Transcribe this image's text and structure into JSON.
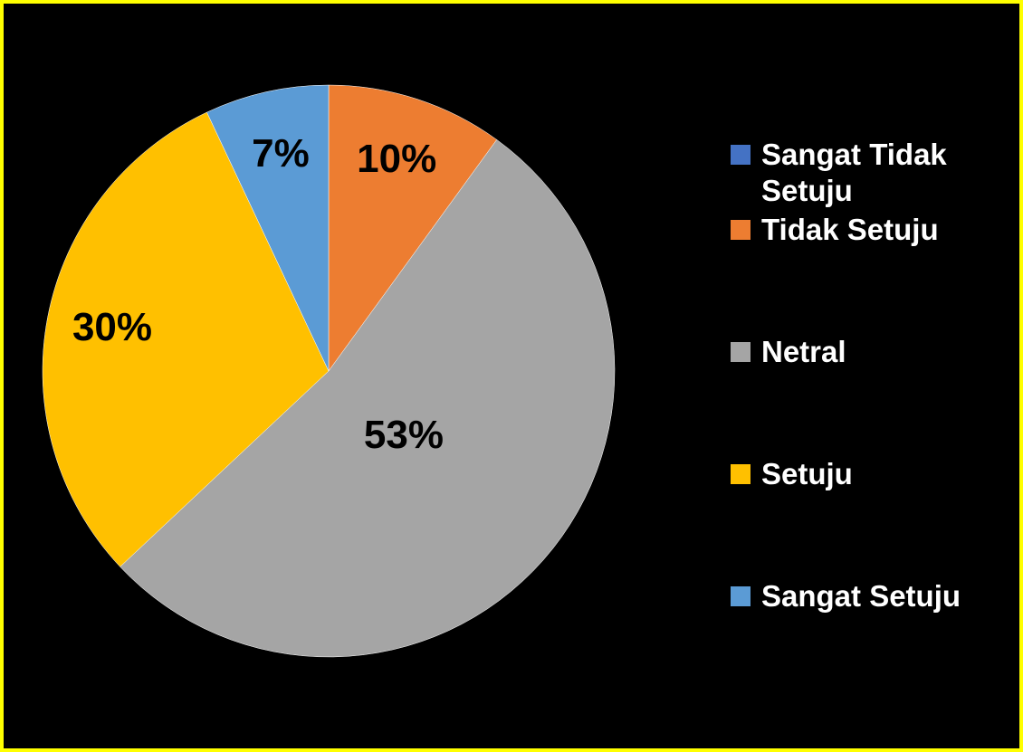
{
  "chart_data": {
    "type": "pie",
    "categories": [
      "Sangat Tidak Setuju",
      "Tidak Setuju",
      "Netral",
      "Setuju",
      "Sangat Setuju"
    ],
    "values": [
      0,
      10,
      53,
      30,
      7
    ],
    "value_labels": [
      null,
      "10%",
      "53%",
      "30%",
      "7%"
    ],
    "colors": [
      "#4472c4",
      "#ed7d31",
      "#a5a5a5",
      "#ffc000",
      "#5b9bd5"
    ],
    "legend": "right"
  }
}
